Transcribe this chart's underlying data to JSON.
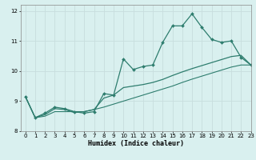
{
  "xlabel": "Humidex (Indice chaleur)",
  "xlim": [
    -0.5,
    23
  ],
  "ylim": [
    8,
    12.2
  ],
  "yticks": [
    8,
    9,
    10,
    11,
    12
  ],
  "xticks": [
    0,
    1,
    2,
    3,
    4,
    5,
    6,
    7,
    8,
    9,
    10,
    11,
    12,
    13,
    14,
    15,
    16,
    17,
    18,
    19,
    20,
    21,
    22,
    23
  ],
  "bg_color": "#d9f0ef",
  "grid_color": "#c8dede",
  "line_color": "#2e7d6e",
  "series1_y": [
    9.15,
    8.45,
    8.6,
    8.8,
    8.75,
    8.65,
    8.6,
    8.65,
    9.25,
    9.2,
    10.4,
    10.05,
    10.15,
    10.2,
    10.95,
    11.5,
    11.5,
    11.9,
    11.45,
    11.05,
    10.95,
    11.0,
    10.45,
    10.2
  ],
  "series2_y": [
    9.15,
    8.45,
    8.55,
    8.75,
    8.72,
    8.62,
    8.65,
    8.72,
    9.1,
    9.2,
    9.45,
    9.5,
    9.55,
    9.62,
    9.72,
    9.85,
    9.97,
    10.08,
    10.18,
    10.28,
    10.38,
    10.48,
    10.52,
    10.2
  ],
  "series3_y": [
    9.15,
    8.45,
    8.5,
    8.65,
    8.65,
    8.65,
    8.65,
    8.72,
    8.8,
    8.9,
    9.0,
    9.1,
    9.2,
    9.3,
    9.4,
    9.5,
    9.62,
    9.73,
    9.83,
    9.93,
    10.03,
    10.13,
    10.2,
    10.2
  ]
}
